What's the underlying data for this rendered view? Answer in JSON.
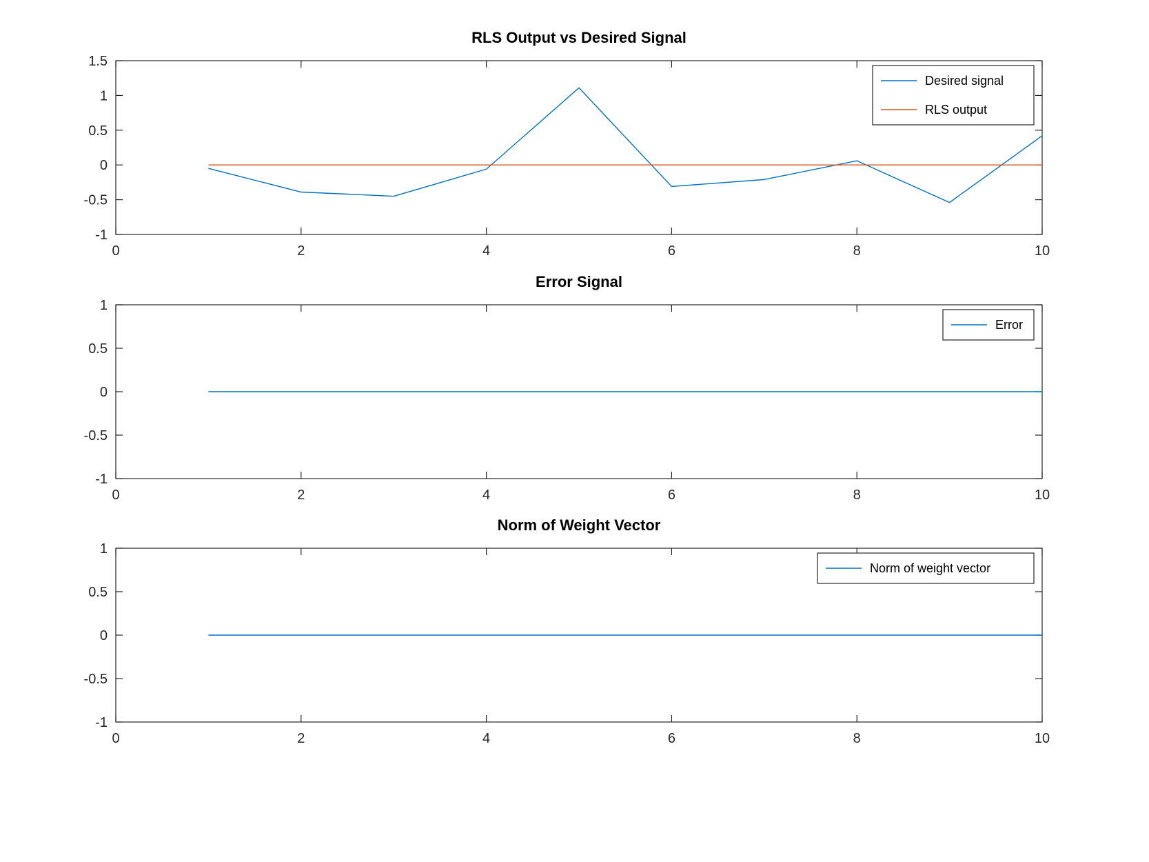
{
  "chart_data": [
    {
      "type": "line",
      "title": "RLS Output vs Desired Signal",
      "xlim": [
        0,
        10
      ],
      "ylim": [
        -1,
        1.5
      ],
      "xticks": [
        0,
        2,
        4,
        6,
        8,
        10
      ],
      "yticks": [
        -1,
        -0.5,
        0,
        0.5,
        1,
        1.5
      ],
      "xtick_labels": [
        "0",
        "2",
        "4",
        "6",
        "8",
        "10"
      ],
      "ytick_labels": [
        "-1",
        "-0.5",
        "0",
        "0.5",
        "1",
        "1.5"
      ],
      "legend": "top-right",
      "grid": false,
      "x": [
        1,
        2,
        3,
        4,
        5,
        6,
        7,
        8,
        9,
        10
      ],
      "series": [
        {
          "name": "Desired signal",
          "color": "#0072BD",
          "values": [
            -0.05,
            -0.39,
            -0.45,
            -0.06,
            1.11,
            -0.31,
            -0.21,
            0.06,
            -0.54,
            0.42
          ]
        },
        {
          "name": "RLS output",
          "color": "#D95319",
          "values": [
            0,
            0,
            0,
            0,
            0,
            0,
            0,
            0,
            0,
            0
          ]
        }
      ]
    },
    {
      "type": "line",
      "title": "Error Signal",
      "xlim": [
        0,
        10
      ],
      "ylim": [
        -1,
        1
      ],
      "xticks": [
        0,
        2,
        4,
        6,
        8,
        10
      ],
      "yticks": [
        -1,
        -0.5,
        0,
        0.5,
        1
      ],
      "xtick_labels": [
        "0",
        "2",
        "4",
        "6",
        "8",
        "10"
      ],
      "ytick_labels": [
        "-1",
        "-0.5",
        "0",
        "0.5",
        "1"
      ],
      "legend": "top-right",
      "grid": false,
      "x": [
        1,
        2,
        3,
        4,
        5,
        6,
        7,
        8,
        9,
        10
      ],
      "series": [
        {
          "name": "Error",
          "color": "#0072BD",
          "values": [
            0,
            0,
            0,
            0,
            0,
            0,
            0,
            0,
            0,
            0
          ]
        }
      ]
    },
    {
      "type": "line",
      "title": "Norm of Weight Vector",
      "xlim": [
        0,
        10
      ],
      "ylim": [
        -1,
        1
      ],
      "xticks": [
        0,
        2,
        4,
        6,
        8,
        10
      ],
      "yticks": [
        -1,
        -0.5,
        0,
        0.5,
        1
      ],
      "xtick_labels": [
        "0",
        "2",
        "4",
        "6",
        "8",
        "10"
      ],
      "ytick_labels": [
        "-1",
        "-0.5",
        "0",
        "0.5",
        "1"
      ],
      "legend": "top-right",
      "grid": false,
      "x": [
        1,
        2,
        3,
        4,
        5,
        6,
        7,
        8,
        9,
        10
      ],
      "series": [
        {
          "name": "Norm of weight vector",
          "color": "#0072BD",
          "values": [
            0,
            0,
            0,
            0,
            0,
            0,
            0,
            0,
            0,
            0
          ]
        }
      ]
    }
  ]
}
